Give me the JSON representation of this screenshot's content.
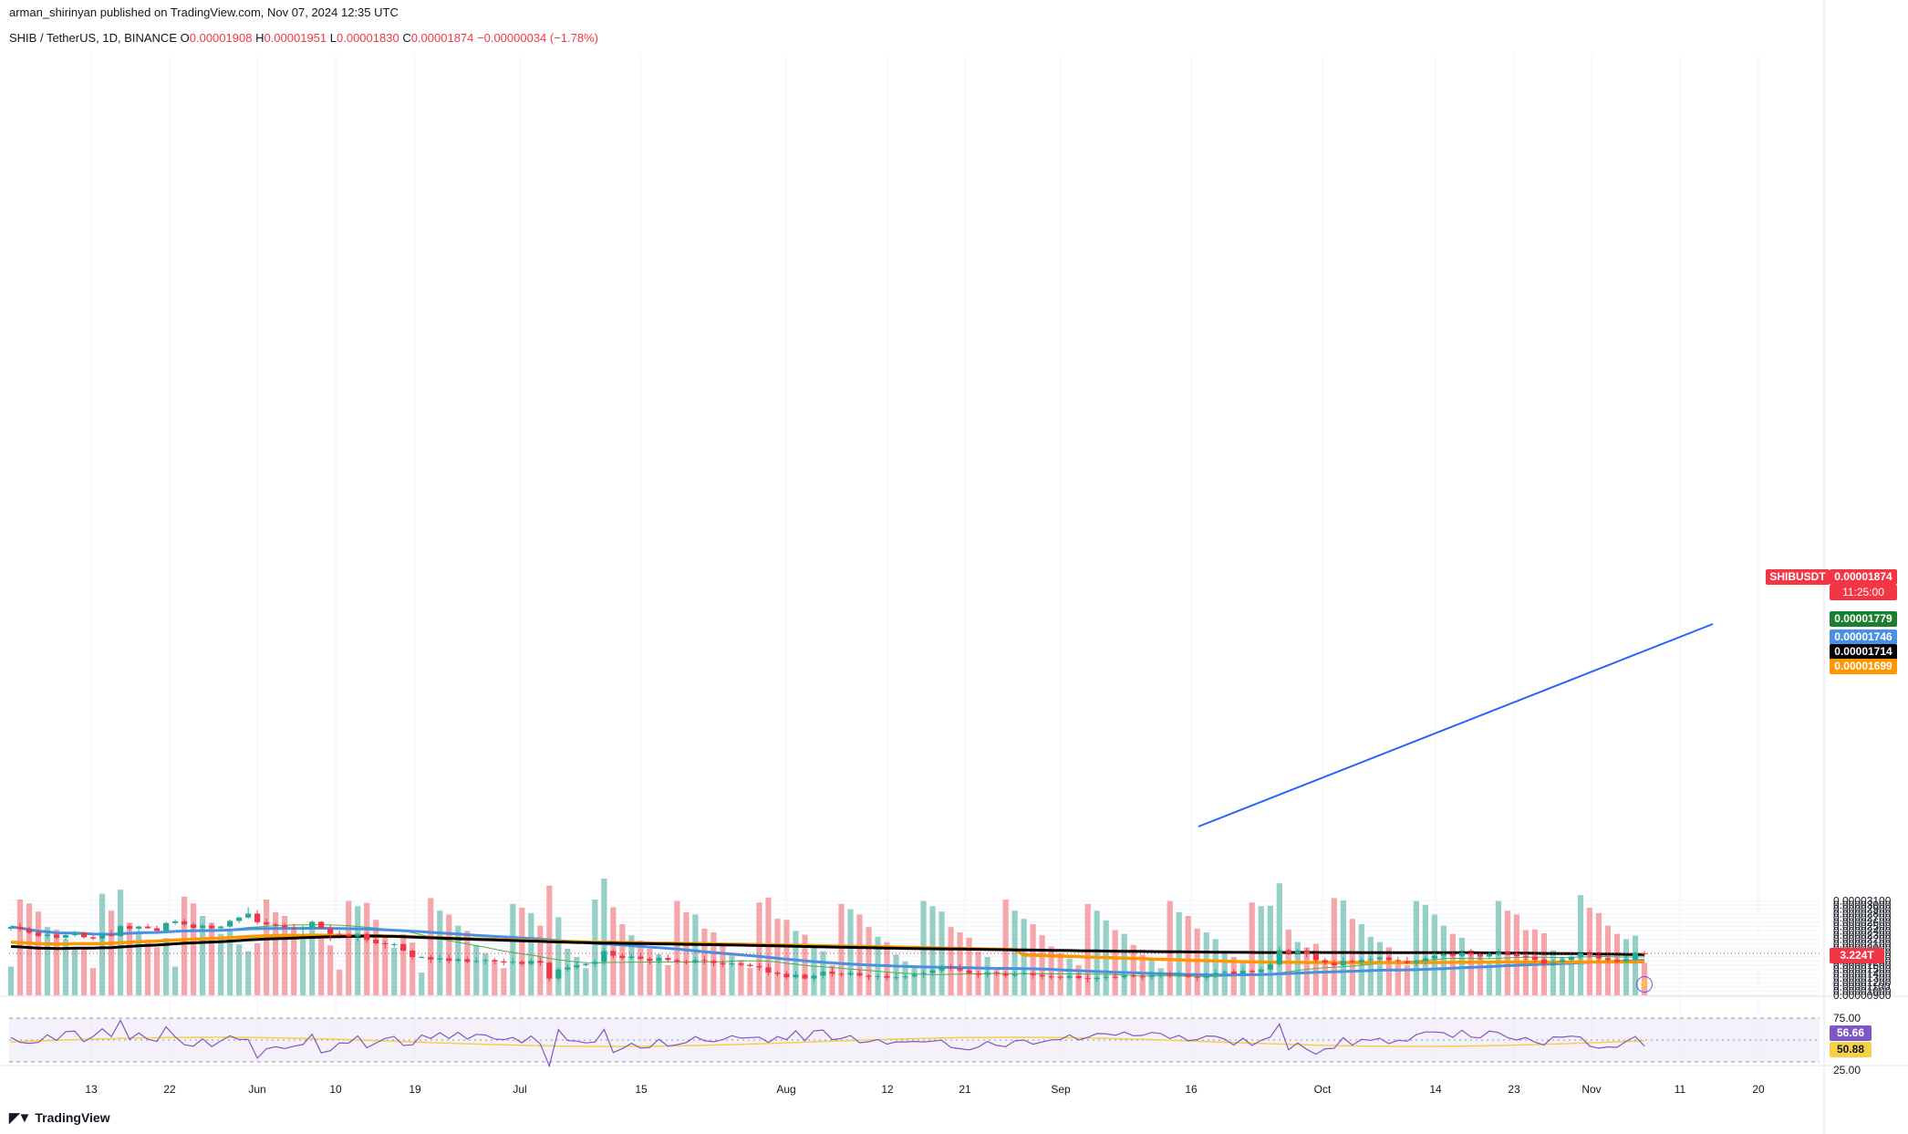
{
  "header": {
    "publisher": "arman_shirinyan published on TradingView.com, Nov 07, 2024 12:35 UTC",
    "symbol_line": "SHIB / TetherUS, 1D, BINANCE",
    "ohlc": {
      "o_label": "O",
      "o_value": "0.00001908",
      "h_label": "H",
      "h_value": "0.00001951",
      "l_label": "L",
      "l_value": "0.00001830",
      "c_label": "C",
      "c_value": "0.00001874",
      "change": "−0.00000034 (−1.78%)"
    }
  },
  "branding": {
    "logo_text": "TradingView",
    "logo_icon": "tradingview-logo-icon"
  },
  "colors": {
    "up": "#22ab94",
    "down": "#f23645",
    "vol_up": "#95cfc6",
    "vol_down": "#f5a6ab",
    "sma_short": "#4caf50",
    "sma_mid": "#4a90e2",
    "sma_long": "#ff9800",
    "sma_longest": "#000000",
    "rsi_line": "#7e57c2",
    "rsi_ma": "#f5d14a",
    "trendline": "#2962ff"
  },
  "price_labels": {
    "symbol_tag": "SHIBUSDT",
    "last_price": "0.00001874",
    "countdown": "11:25:00",
    "ma_green": "0.00001779",
    "ma_blue": "0.00001746",
    "ma_black": "0.00001714",
    "ma_orange": "0.00001699",
    "volume": "3.224T",
    "rsi_value": "56.66",
    "rsi_ma_value": "50.88"
  },
  "chart_data": {
    "type": "candlestick",
    "symbol": "SHIB / TetherUS",
    "timeframe": "1D",
    "exchange": "BINANCE",
    "y_ticks": [
      "0.00000900",
      "0.00001000",
      "0.00001100",
      "0.00001200",
      "0.00001300",
      "0.00001400",
      "0.00001500",
      "0.00001600",
      "0.00001700",
      "0.00001800",
      "0.00001900",
      "0.00002000",
      "0.00002100",
      "0.00002200",
      "0.00002300",
      "0.00002400",
      "0.00002500",
      "0.00002600",
      "0.00002700",
      "0.00002800",
      "0.00002900",
      "0.00003000",
      "0.00003100"
    ],
    "y_range": [
      9e-06,
      3.12e-05
    ],
    "x_ticks": [
      "13",
      "22",
      "Jun",
      "10",
      "19",
      "Jul",
      "15",
      "Aug",
      "12",
      "21",
      "Sep",
      "16",
      "Oct",
      "14",
      "23",
      "Nov",
      "11",
      "20"
    ],
    "rsi_levels": [
      "75.00",
      "25.00"
    ],
    "candles_ohlc": [
      [
        2.45,
        2.52,
        2.4,
        2.49
      ],
      [
        2.49,
        2.58,
        2.38,
        2.44
      ],
      [
        2.44,
        2.5,
        2.32,
        2.36
      ],
      [
        2.36,
        2.42,
        2.25,
        2.28
      ],
      [
        2.28,
        2.36,
        2.22,
        2.31
      ],
      [
        2.31,
        2.35,
        2.2,
        2.24
      ],
      [
        2.24,
        2.32,
        2.18,
        2.3
      ],
      [
        2.3,
        2.4,
        2.26,
        2.36
      ],
      [
        2.36,
        2.38,
        2.22,
        2.25
      ],
      [
        2.25,
        2.31,
        2.18,
        2.22
      ],
      [
        2.22,
        2.34,
        2.15,
        2.31
      ],
      [
        2.31,
        2.42,
        2.27,
        2.28
      ],
      [
        2.28,
        2.55,
        2.26,
        2.51
      ],
      [
        2.51,
        2.57,
        2.4,
        2.45
      ],
      [
        2.45,
        2.52,
        2.39,
        2.5
      ],
      [
        2.5,
        2.56,
        2.44,
        2.46
      ],
      [
        2.46,
        2.52,
        2.38,
        2.4
      ],
      [
        2.4,
        2.61,
        2.36,
        2.58
      ],
      [
        2.58,
        2.66,
        2.54,
        2.62
      ],
      [
        2.62,
        2.68,
        2.5,
        2.55
      ],
      [
        2.55,
        2.6,
        2.43,
        2.47
      ],
      [
        2.47,
        2.55,
        2.41,
        2.52
      ],
      [
        2.52,
        2.57,
        2.44,
        2.46
      ],
      [
        2.46,
        2.52,
        2.42,
        2.5
      ],
      [
        2.5,
        2.66,
        2.47,
        2.63
      ],
      [
        2.63,
        2.73,
        2.58,
        2.71
      ],
      [
        2.71,
        2.95,
        2.68,
        2.8
      ],
      [
        2.8,
        2.88,
        2.55,
        2.6
      ],
      [
        2.6,
        2.68,
        2.52,
        2.55
      ],
      [
        2.55,
        2.59,
        2.47,
        2.53
      ],
      [
        2.53,
        2.57,
        2.44,
        2.48
      ],
      [
        2.48,
        2.56,
        2.42,
        2.46
      ],
      [
        2.46,
        2.52,
        2.28,
        2.46
      ],
      [
        2.46,
        2.64,
        2.44,
        2.61
      ],
      [
        2.61,
        2.63,
        2.43,
        2.46
      ],
      [
        2.46,
        2.54,
        2.16,
        2.33
      ],
      [
        2.33,
        2.4,
        2.28,
        2.31
      ],
      [
        2.31,
        2.35,
        2.22,
        2.27
      ],
      [
        2.27,
        2.34,
        2.15,
        2.33
      ],
      [
        2.33,
        2.37,
        2.13,
        2.19
      ],
      [
        2.19,
        2.26,
        2.08,
        2.11
      ],
      [
        2.11,
        2.17,
        1.99,
        2.09
      ],
      [
        2.09,
        2.13,
        2.01,
        2.09
      ],
      [
        2.09,
        2.11,
        1.92,
        1.94
      ],
      [
        1.94,
        1.96,
        1.73,
        1.79
      ]
    ]
  }
}
